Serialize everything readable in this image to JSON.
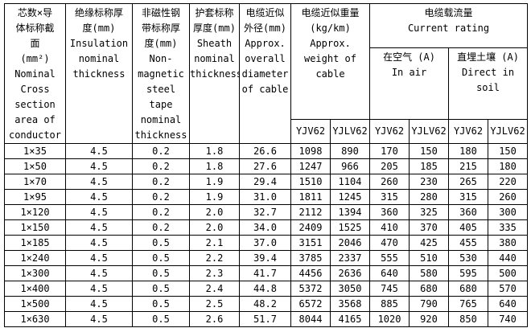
{
  "page": {
    "background_color": "#ffffff",
    "border_color": "#000000",
    "text_color": "#000000"
  },
  "chart_data": {
    "type": "table",
    "title": "",
    "header": {
      "conductor": "芯数×导\n体标称截\n面\n(mm²)\nNominal\nCross\nsection\narea of\nconductor",
      "insulation": "绝缘标称厚\n度(mm)\nInsulation\nnominal\nthickness",
      "tape": "非磁性钢\n带标称厚\n度(mm)\nNon-\nmagnetic\nsteel\ntape\nnominal\nthickness",
      "sheath": "护套标称\n厚度(mm)\nSheath\nnominal\nthickness",
      "diameter": "电缆近似\n外径(mm)\nApprox.\noverall\ndiameter\nof cable",
      "weight_group": "电缆近似重量\n(kg/km)\nApprox.\nweight of\ncable",
      "current_group": "电缆载流量\nCurrent rating",
      "in_air_group": "在空气 (A)\nIn air",
      "in_soil_group": "直埋土壤 (A)\nDirect in\nsoil",
      "sub_types": [
        "YJV62",
        "YJLV62",
        "YJV62",
        "YJLV62",
        "YJV62",
        "YJLV62"
      ]
    },
    "rows": [
      {
        "size": "1×35",
        "values": [
          "4.5",
          "0.2",
          "1.8",
          "26.6",
          "1098",
          "890",
          "170",
          "150",
          "180",
          "150"
        ]
      },
      {
        "size": "1×50",
        "values": [
          "4.5",
          "0.2",
          "1.8",
          "27.6",
          "1247",
          "966",
          "205",
          "185",
          "215",
          "180"
        ]
      },
      {
        "size": "1×70",
        "values": [
          "4.5",
          "0.2",
          "1.9",
          "29.4",
          "1510",
          "1104",
          "260",
          "230",
          "265",
          "220"
        ]
      },
      {
        "size": "1×95",
        "values": [
          "4.5",
          "0.2",
          "1.9",
          "31.0",
          "1811",
          "1245",
          "315",
          "280",
          "315",
          "260"
        ]
      },
      {
        "size": "1×120",
        "values": [
          "4.5",
          "0.2",
          "2.0",
          "32.7",
          "2112",
          "1394",
          "360",
          "325",
          "360",
          "300"
        ]
      },
      {
        "size": "1×150",
        "values": [
          "4.5",
          "0.2",
          "2.0",
          "34.0",
          "2409",
          "1525",
          "410",
          "370",
          "405",
          "335"
        ]
      },
      {
        "size": "1×185",
        "values": [
          "4.5",
          "0.5",
          "2.1",
          "37.0",
          "3151",
          "2046",
          "470",
          "425",
          "455",
          "380"
        ]
      },
      {
        "size": "1×240",
        "values": [
          "4.5",
          "0.5",
          "2.2",
          "39.4",
          "3785",
          "2337",
          "555",
          "510",
          "530",
          "440"
        ]
      },
      {
        "size": "1×300",
        "values": [
          "4.5",
          "0.5",
          "2.3",
          "41.7",
          "4456",
          "2636",
          "640",
          "580",
          "595",
          "500"
        ]
      },
      {
        "size": "1×400",
        "values": [
          "4.5",
          "0.5",
          "2.4",
          "44.8",
          "5372",
          "3050",
          "745",
          "680",
          "680",
          "570"
        ]
      },
      {
        "size": "1×500",
        "values": [
          "4.5",
          "0.5",
          "2.5",
          "48.2",
          "6572",
          "3568",
          "885",
          "790",
          "765",
          "640"
        ]
      },
      {
        "size": "1×630",
        "values": [
          "4.5",
          "0.5",
          "2.6",
          "51.7",
          "8044",
          "4165",
          "1020",
          "920",
          "850",
          "740"
        ]
      }
    ]
  }
}
